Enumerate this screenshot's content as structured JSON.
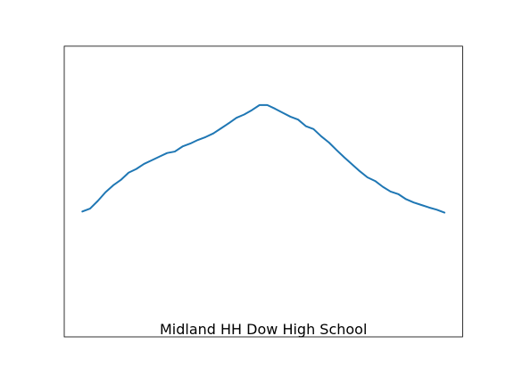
{
  "chart_data": {
    "type": "line",
    "title": "Midland HH Dow High School",
    "xlabel": "",
    "ylabel": "",
    "xlim": [
      -2.35,
      49.35
    ],
    "ylim": [
      -4,
      4
    ],
    "grid": false,
    "axes_ticks": false,
    "series": [
      {
        "color": "#1f77b4",
        "x": [
          0,
          1,
          2,
          3,
          4,
          5,
          6,
          7,
          8,
          9,
          10,
          11,
          12,
          13,
          14,
          15,
          16,
          17,
          18,
          19,
          20,
          21,
          22,
          23,
          24,
          25,
          26,
          27,
          28,
          29,
          30,
          31,
          32,
          33,
          34,
          35,
          36,
          37,
          38,
          39,
          40,
          41,
          42,
          43,
          44,
          45,
          46,
          47
        ],
        "y": [
          -0.55,
          -0.47,
          -0.26,
          -0.02,
          0.17,
          0.32,
          0.52,
          0.62,
          0.76,
          0.86,
          0.96,
          1.06,
          1.1,
          1.24,
          1.32,
          1.42,
          1.5,
          1.6,
          1.74,
          1.88,
          2.03,
          2.12,
          2.24,
          2.38,
          2.38,
          2.28,
          2.17,
          2.06,
          1.98,
          1.8,
          1.72,
          1.52,
          1.35,
          1.14,
          0.94,
          0.75,
          0.56,
          0.39,
          0.29,
          0.13,
          0.0,
          -0.07,
          -0.21,
          -0.3,
          -0.37,
          -0.44,
          -0.5,
          -0.58
        ]
      }
    ]
  }
}
